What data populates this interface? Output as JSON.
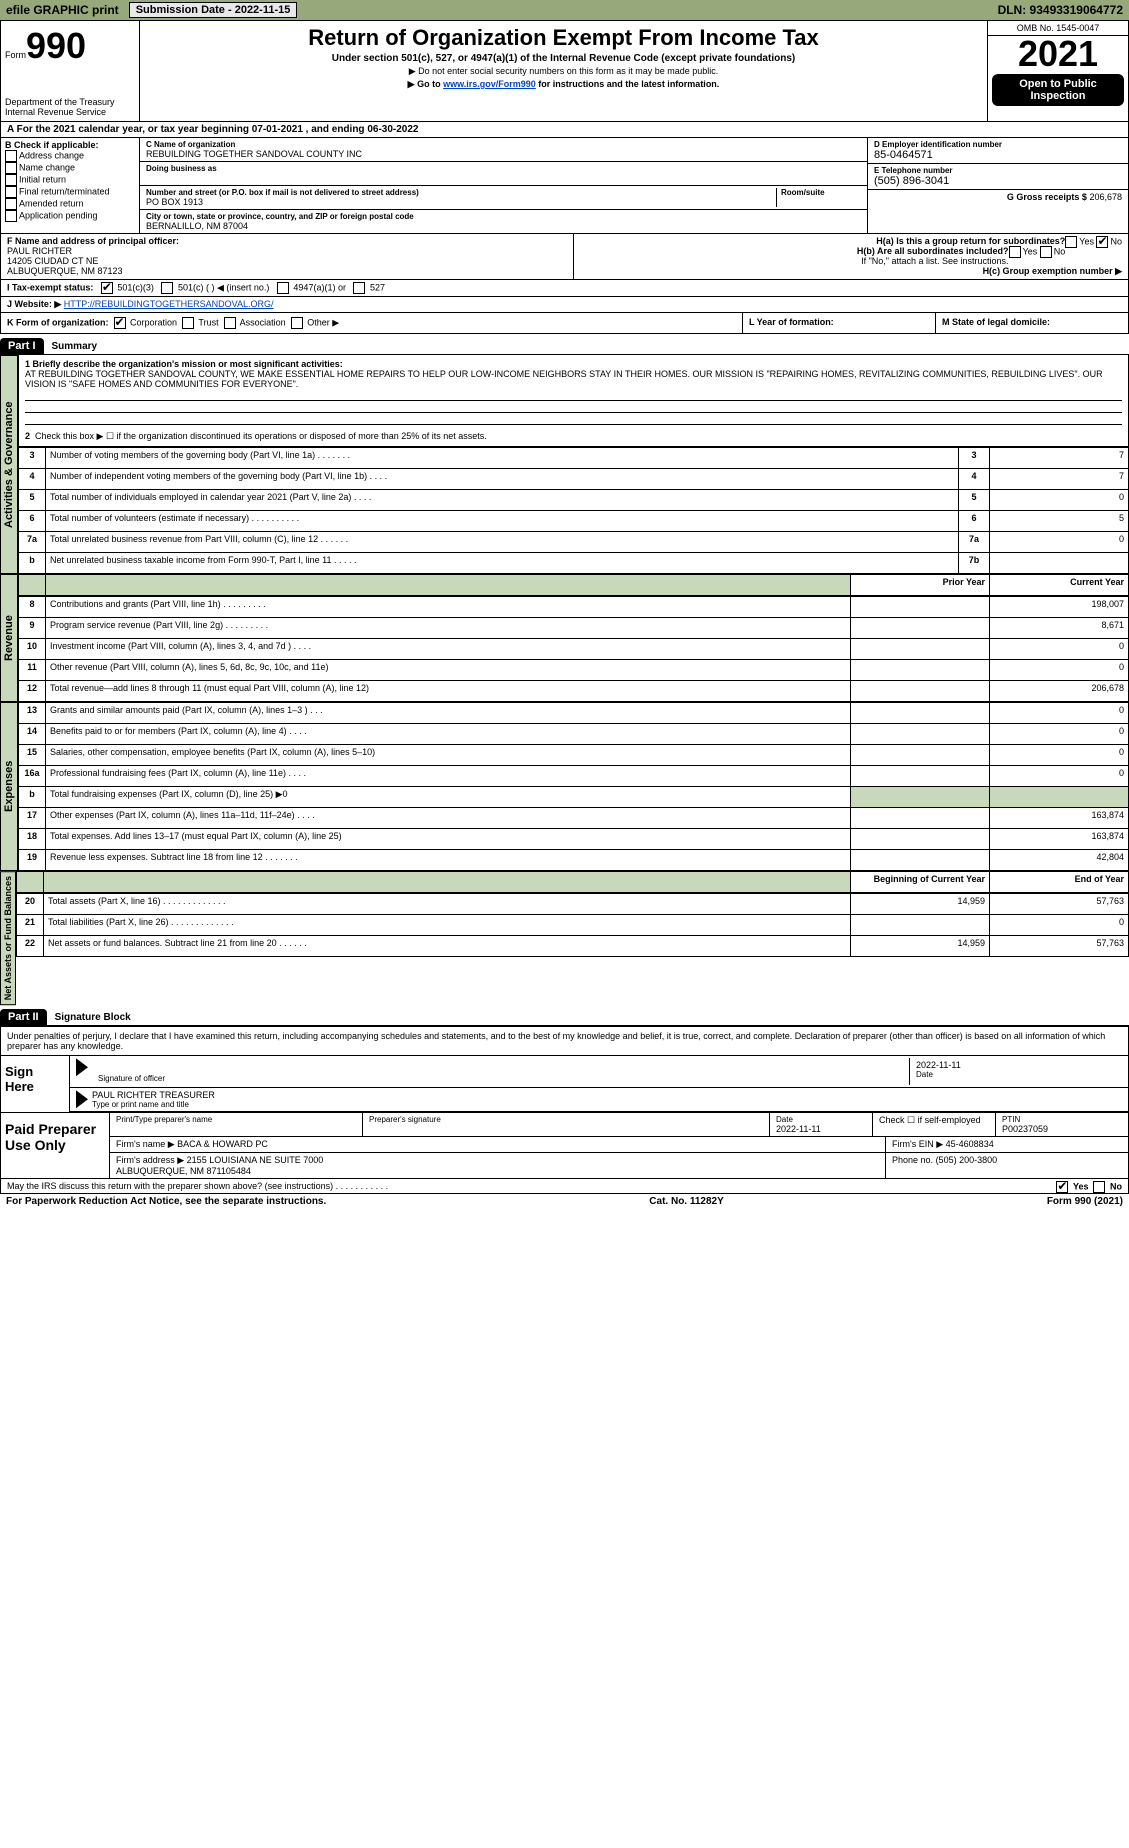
{
  "top_bar": {
    "efile": "efile GRAPHIC print",
    "submission": "Submission Date - 2022-11-15",
    "dln": "DLN: 93493319064772"
  },
  "header": {
    "form_prefix": "Form",
    "form_num": "990",
    "title": "Return of Organization Exempt From Income Tax",
    "sub": "Under section 501(c), 527, or 4947(a)(1) of the Internal Revenue Code (except private foundations)",
    "note1": "▶ Do not enter social security numbers on this form as it may be made public.",
    "note2_pre": "▶ Go to ",
    "note2_link": "www.irs.gov/Form990",
    "note2_post": " for instructions and the latest information.",
    "dept": "Department of the Treasury\nInternal Revenue Service",
    "omb": "OMB No. 1545-0047",
    "year": "2021",
    "open_pub": "Open to Public Inspection"
  },
  "period": "A For the 2021 calendar year, or tax year beginning 07-01-2021   , and ending 06-30-2022",
  "block_b": {
    "label": "B Check if applicable:",
    "items": [
      "Address change",
      "Name change",
      "Initial return",
      "Final return/terminated",
      "Amended return",
      "Application pending"
    ]
  },
  "block_c": {
    "name_lbl": "C Name of organization",
    "name": "REBUILDING TOGETHER SANDOVAL COUNTY INC",
    "dba_lbl": "Doing business as",
    "addr_lbl": "Number and street (or P.O. box if mail is not delivered to street address)",
    "room_lbl": "Room/suite",
    "addr": "PO BOX 1913",
    "city_lbl": "City or town, state or province, country, and ZIP or foreign postal code",
    "city": "BERNALILLO, NM  87004"
  },
  "block_d": {
    "ein_lbl": "D Employer identification number",
    "ein": "85-0464571",
    "tel_lbl": "E Telephone number",
    "tel": "(505) 896-3041",
    "gross_lbl": "G Gross receipts $",
    "gross": "206,678"
  },
  "block_f": {
    "lbl": "F  Name and address of principal officer:",
    "name": "PAUL RICHTER",
    "addr1": "14205 CIUDAD CT NE",
    "addr2": "ALBUQUERQUE, NM  87123"
  },
  "block_h": {
    "a": "H(a)  Is this a group return for subordinates?",
    "a_yes": "Yes",
    "a_no": "No",
    "b": "H(b)  Are all subordinates included?",
    "b_yes": "Yes",
    "b_no": "No",
    "b_note": "If \"No,\" attach a list. See instructions.",
    "c": "H(c)  Group exemption number ▶"
  },
  "row_i": {
    "lbl": "I  Tax-exempt status:",
    "opt1": "501(c)(3)",
    "opt2": "501(c) (   ) ◀ (insert no.)",
    "opt3": "4947(a)(1) or",
    "opt4": "527"
  },
  "row_j": {
    "lbl": "J  Website: ▶",
    "url": "HTTP://REBUILDINGTOGETHERSANDOVAL.ORG/"
  },
  "row_k": {
    "lbl": "K Form of organization:",
    "o1": "Corporation",
    "o2": "Trust",
    "o3": "Association",
    "o4": "Other ▶",
    "l": "L Year of formation:",
    "m": "M State of legal domicile:"
  },
  "part1": {
    "hdr": "Part I",
    "title": "Summary",
    "q1_lbl": "1  Briefly describe the organization's mission or most significant activities:",
    "q1_text": "AT REBUILDING TOGETHER SANDOVAL COUNTY, WE MAKE ESSENTIAL HOME REPAIRS TO HELP OUR LOW-INCOME NEIGHBORS STAY IN THEIR HOMES. OUR MISSION IS \"REPAIRING HOMES, REVITALIZING COMMUNITIES, REBUILDING LIVES\". OUR VISION IS \"SAFE HOMES AND COMMUNITIES FOR EVERYONE\".",
    "q2": "Check this box ▶ ☐ if the organization discontinued its operations or disposed of more than 25% of its net assets.",
    "section_a_label": "Activities & Governance",
    "rows_a": [
      {
        "n": "3",
        "d": "Number of voting members of the governing body (Part VI, line 1a)   .    .    .    .    .    .    .",
        "idx": "3",
        "v": "7"
      },
      {
        "n": "4",
        "d": "Number of independent voting members of the governing body (Part VI, line 1b)   .    .    .    .",
        "idx": "4",
        "v": "7"
      },
      {
        "n": "5",
        "d": "Total number of individuals employed in calendar year 2021 (Part V, line 2a)   .    .    .    .",
        "idx": "5",
        "v": "0"
      },
      {
        "n": "6",
        "d": "Total number of volunteers (estimate if necessary)   .    .    .    .    .    .    .    .    .    .",
        "idx": "6",
        "v": "5"
      },
      {
        "n": "7a",
        "d": "Total unrelated business revenue from Part VIII, column (C), line 12   .    .    .    .    .    .",
        "idx": "7a",
        "v": "0"
      },
      {
        "n": "b",
        "d": "Net unrelated business taxable income from Form 990-T, Part I, line 11   .    .    .    .    .",
        "idx": "7b",
        "v": ""
      }
    ],
    "year_hdr_prior": "Prior Year",
    "year_hdr_curr": "Current Year",
    "section_rev_label": "Revenue",
    "rows_rev": [
      {
        "n": "8",
        "d": "Contributions and grants (Part VIII, line 1h)   .    .    .    .    .    .    .    .    .",
        "py": "",
        "cy": "198,007"
      },
      {
        "n": "9",
        "d": "Program service revenue (Part VIII, line 2g)   .    .    .    .    .    .    .    .    .",
        "py": "",
        "cy": "8,671"
      },
      {
        "n": "10",
        "d": "Investment income (Part VIII, column (A), lines 3, 4, and 7d )   .    .    .    .",
        "py": "",
        "cy": "0"
      },
      {
        "n": "11",
        "d": "Other revenue (Part VIII, column (A), lines 5, 6d, 8c, 9c, 10c, and 11e)",
        "py": "",
        "cy": "0"
      },
      {
        "n": "12",
        "d": "Total revenue—add lines 8 through 11 (must equal Part VIII, column (A), line 12)",
        "py": "",
        "cy": "206,678"
      }
    ],
    "section_exp_label": "Expenses",
    "rows_exp": [
      {
        "n": "13",
        "d": "Grants and similar amounts paid (Part IX, column (A), lines 1–3 )   .    .    .",
        "py": "",
        "cy": "0"
      },
      {
        "n": "14",
        "d": "Benefits paid to or for members (Part IX, column (A), line 4)   .    .    .    .",
        "py": "",
        "cy": "0"
      },
      {
        "n": "15",
        "d": "Salaries, other compensation, employee benefits (Part IX, column (A), lines 5–10)",
        "py": "",
        "cy": "0"
      },
      {
        "n": "16a",
        "d": "Professional fundraising fees (Part IX, column (A), line 11e)   .    .    .    .",
        "py": "",
        "cy": "0"
      },
      {
        "n": "b",
        "d": "Total fundraising expenses (Part IX, column (D), line 25) ▶0",
        "py": "—shade—",
        "cy": "—shade—"
      },
      {
        "n": "17",
        "d": "Other expenses (Part IX, column (A), lines 11a–11d, 11f–24e)   .    .    .    .",
        "py": "",
        "cy": "163,874"
      },
      {
        "n": "18",
        "d": "Total expenses. Add lines 13–17 (must equal Part IX, column (A), line 25)",
        "py": "",
        "cy": "163,874"
      },
      {
        "n": "19",
        "d": "Revenue less expenses. Subtract line 18 from line 12   .    .    .    .    .    .    .",
        "py": "",
        "cy": "42,804"
      }
    ],
    "bal_hdr_beg": "Beginning of Current Year",
    "bal_hdr_end": "End of Year",
    "section_net_label": "Net Assets or Fund Balances",
    "rows_net": [
      {
        "n": "20",
        "d": "Total assets (Part X, line 16)   .    .    .    .    .    .    .    .    .    .    .    .    .",
        "py": "14,959",
        "cy": "57,763"
      },
      {
        "n": "21",
        "d": "Total liabilities (Part X, line 26)   .    .    .    .    .    .    .    .    .    .    .    .    .",
        "py": "",
        "cy": "0"
      },
      {
        "n": "22",
        "d": "Net assets or fund balances. Subtract line 21 from line 20   .    .    .    .    .    .",
        "py": "14,959",
        "cy": "57,763"
      }
    ]
  },
  "part2": {
    "hdr": "Part II",
    "title": "Signature Block",
    "decl": "Under penalties of perjury, I declare that I have examined this return, including accompanying schedules and statements, and to the best of my knowledge and belief, it is true, correct, and complete. Declaration of preparer (other than officer) is based on all information of which preparer has any knowledge.",
    "sign_here": "Sign Here",
    "sig_officer_lbl": "Signature of officer",
    "sig_date": "2022-11-11",
    "sig_date_lbl": "Date",
    "typed_name": "PAUL RICHTER  TREASURER",
    "typed_lbl": "Type or print name and title",
    "paid_lbl": "Paid Preparer Use Only",
    "prep_name_lbl": "Print/Type preparer's name",
    "prep_sig_lbl": "Preparer's signature",
    "prep_date_lbl": "Date",
    "prep_date": "2022-11-11",
    "self_emp_lbl": "Check ☐ if self-employed",
    "ptin_lbl": "PTIN",
    "ptin": "P00237059",
    "firm_name_lbl": "Firm's name    ▶",
    "firm_name": "BACA & HOWARD PC",
    "firm_ein_lbl": "Firm's EIN ▶",
    "firm_ein": "45-4608834",
    "firm_addr_lbl": "Firm's address ▶",
    "firm_addr": "2155 LOUISIANA NE SUITE 7000\nALBUQUERQUE, NM  871105484",
    "phone_lbl": "Phone no.",
    "phone": "(505) 200-3800",
    "discuss": "May the IRS discuss this return with the preparer shown above? (see instructions)   .    .    .    .    .    .    .    .    .    .    .",
    "discuss_yes": "Yes",
    "discuss_no": "No"
  },
  "footer": {
    "left": "For Paperwork Reduction Act Notice, see the separate instructions.",
    "mid": "Cat. No. 11282Y",
    "right": "Form 990 (2021)"
  },
  "colors": {
    "header_band": "#97a87a",
    "side_fill": "#c8d8bb",
    "link": "#0044cc",
    "shade": "#c8d8bb"
  }
}
